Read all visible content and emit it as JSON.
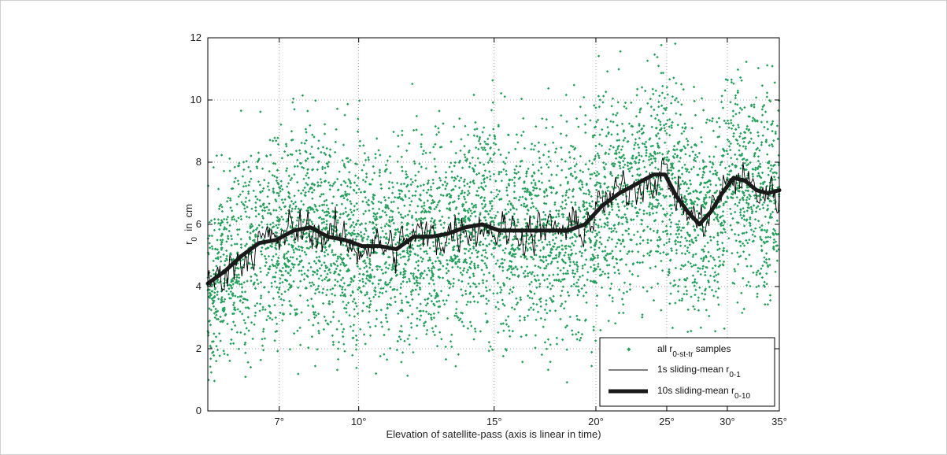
{
  "chart_data": {
    "type": "scatter",
    "xlabel": "Elevation of satellite-pass (axis is linear in time)",
    "ylabel": {
      "main": "r",
      "sub": "0",
      "rest": "  in  cm"
    },
    "ylim": [
      0,
      12
    ],
    "yticks": [
      0,
      2,
      4,
      6,
      8,
      10,
      12
    ],
    "xlim": [
      0,
      100
    ],
    "xticks": [
      {
        "pos": 12.5,
        "label": "7°"
      },
      {
        "pos": 26.4,
        "label": "10°"
      },
      {
        "pos": 50.1,
        "label": "15°"
      },
      {
        "pos": 67.9,
        "label": "20°"
      },
      {
        "pos": 80.3,
        "label": "25°"
      },
      {
        "pos": 90.9,
        "label": "30°"
      },
      {
        "pos": 100,
        "label": "35°"
      }
    ],
    "grid": true,
    "legend_position": "bottom-right",
    "series": [
      {
        "name": {
          "main": "all r",
          "sub": "0-st-tr",
          "rest": " samples"
        },
        "kind": "scatter",
        "color": "#21a05a",
        "count": 5200,
        "spread": 2.2
      },
      {
        "name": {
          "main": "1s sliding-mean r",
          "sub": "0-1",
          "rest": ""
        },
        "kind": "line",
        "color": "#000000",
        "noise": 0.9
      },
      {
        "name": {
          "main": "10s sliding-mean r",
          "sub": "0-10",
          "rest": ""
        },
        "kind": "line",
        "color": "#1a1a1a",
        "x": [
          0,
          3,
          6,
          9,
          12,
          15,
          18,
          21,
          24,
          27,
          30,
          33,
          36,
          39,
          42,
          45,
          48,
          51,
          54,
          57,
          60,
          63,
          66,
          69,
          72,
          75,
          78,
          80,
          82,
          84,
          86,
          88,
          90,
          92,
          94,
          96,
          98,
          100
        ],
        "y": [
          4.1,
          4.5,
          5.0,
          5.4,
          5.5,
          5.8,
          5.9,
          5.6,
          5.5,
          5.3,
          5.3,
          5.2,
          5.6,
          5.6,
          5.7,
          5.9,
          6.0,
          5.8,
          5.8,
          5.8,
          5.8,
          5.8,
          6.0,
          6.6,
          7.0,
          7.3,
          7.6,
          7.6,
          6.9,
          6.4,
          6.0,
          6.4,
          7.0,
          7.5,
          7.4,
          7.1,
          7.0,
          7.1
        ]
      }
    ]
  }
}
